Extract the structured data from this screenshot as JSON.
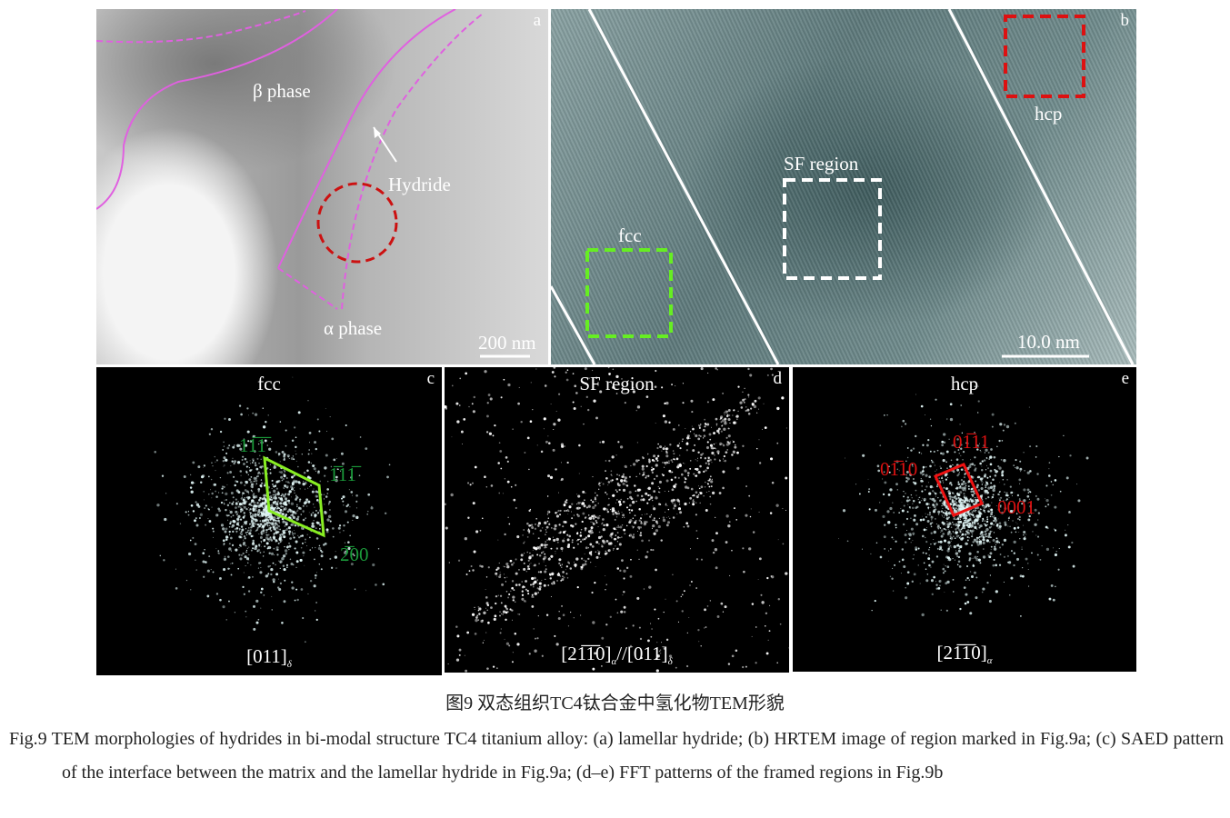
{
  "figure": {
    "panel_a": {
      "letter": "a",
      "beta_label": "β phase",
      "hydride_label": "Hydride",
      "alpha_label": "α phase",
      "scale_bar": "200 nm"
    },
    "panel_b": {
      "letter": "b",
      "fcc_label": "fcc",
      "sf_label": "SF region",
      "hcp_label": "hcp",
      "scale_bar": "10.0 nm"
    },
    "panel_c": {
      "letter": "c",
      "title": "fcc",
      "zone_axis": "[011]",
      "zone_sub": "δ",
      "spots": [
        "11̅1̅",
        "1̅11̅",
        "2̅00"
      ]
    },
    "panel_d": {
      "letter": "d",
      "title": "SF region",
      "zone_axis": "[21̅1̅0]",
      "zone_sub": "α",
      "zone_axis_2": "//[011]",
      "zone_sub_2": "δ"
    },
    "panel_e": {
      "letter": "e",
      "title": "hcp",
      "zone_axis": "[21̅1̅0]",
      "zone_sub": "α",
      "spots": [
        "01̅11",
        "01̅10",
        "0001"
      ]
    },
    "colors": {
      "beta_line": "#e060e0",
      "fcc_frame": "#66ee22",
      "sf_frame": "#ffffff",
      "hcp_frame": "#dd1111",
      "c_spots": "#1a9a3a",
      "e_spots": "#dd1111"
    }
  },
  "caption": {
    "cn": "图9  双态组织TC4钛合金中氢化物TEM形貌",
    "en": "Fig.9  TEM morphologies of hydrides in bi-modal structure TC4 titanium alloy: (a) lamellar hydride; (b) HRTEM image of region marked in Fig.9a; (c) SAED pattern of the interface between the matrix and the lamellar hydride in Fig.9a; (d–e) FFT patterns of the framed regions in Fig.9b"
  }
}
